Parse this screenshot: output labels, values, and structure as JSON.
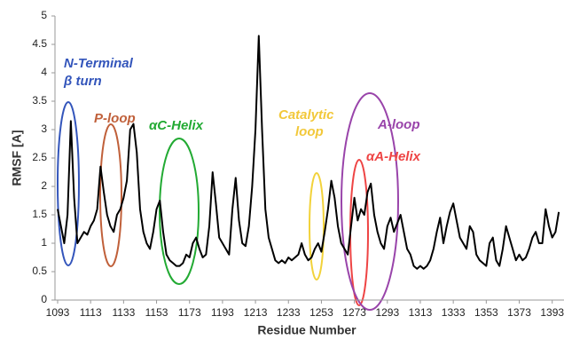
{
  "chart_data": {
    "type": "line",
    "xlabel": "Residue Number",
    "ylabel": "RMSF [A]",
    "color": "#000000",
    "x": [
      1093,
      1095,
      1097,
      1099,
      1101,
      1103,
      1105,
      1107,
      1109,
      1111,
      1113,
      1115,
      1117,
      1119,
      1121,
      1123,
      1125,
      1127,
      1129,
      1131,
      1133,
      1135,
      1137,
      1139,
      1141,
      1143,
      1145,
      1147,
      1149,
      1151,
      1153,
      1155,
      1157,
      1159,
      1161,
      1163,
      1165,
      1167,
      1169,
      1171,
      1173,
      1175,
      1177,
      1179,
      1181,
      1183,
      1185,
      1187,
      1189,
      1191,
      1193,
      1195,
      1197,
      1199,
      1201,
      1203,
      1205,
      1207,
      1209,
      1211,
      1213,
      1215,
      1217,
      1219,
      1221,
      1223,
      1225,
      1227,
      1229,
      1231,
      1233,
      1235,
      1237,
      1239,
      1241,
      1243,
      1245,
      1247,
      1249,
      1251,
      1253,
      1255,
      1257,
      1259,
      1261,
      1263,
      1265,
      1267,
      1269,
      1271,
      1273,
      1275,
      1277,
      1279,
      1281,
      1283,
      1285,
      1287,
      1289,
      1291,
      1293,
      1295,
      1297,
      1299,
      1301,
      1303,
      1305,
      1307,
      1309,
      1311,
      1313,
      1315,
      1317,
      1319,
      1321,
      1323,
      1325,
      1327,
      1329,
      1331,
      1333,
      1335,
      1337,
      1339,
      1341,
      1343,
      1345,
      1347,
      1349,
      1351,
      1353,
      1355,
      1357,
      1359,
      1361,
      1363,
      1365,
      1367,
      1369,
      1371,
      1373,
      1375,
      1377,
      1379,
      1381,
      1383,
      1385,
      1387,
      1389,
      1391,
      1393,
      1395,
      1397
    ],
    "values": [
      1.6,
      1.3,
      1.0,
      1.5,
      3.15,
      1.8,
      1.0,
      1.1,
      1.2,
      1.15,
      1.3,
      1.4,
      1.6,
      2.35,
      1.9,
      1.5,
      1.3,
      1.2,
      1.5,
      1.6,
      1.8,
      2.1,
      3.0,
      3.1,
      2.6,
      1.6,
      1.2,
      1.0,
      0.9,
      1.2,
      1.6,
      1.75,
      1.2,
      0.8,
      0.7,
      0.65,
      0.6,
      0.6,
      0.65,
      0.8,
      0.75,
      1.0,
      1.1,
      0.9,
      0.75,
      0.8,
      1.3,
      2.25,
      1.7,
      1.1,
      1.0,
      0.9,
      0.8,
      1.6,
      2.15,
      1.4,
      1.0,
      0.95,
      1.3,
      2.0,
      3.0,
      4.65,
      3.0,
      1.6,
      1.1,
      0.9,
      0.7,
      0.65,
      0.7,
      0.65,
      0.75,
      0.7,
      0.75,
      0.8,
      1.0,
      0.8,
      0.7,
      0.75,
      0.9,
      1.0,
      0.85,
      1.2,
      1.6,
      2.1,
      1.8,
      1.3,
      1.0,
      0.9,
      0.8,
      1.3,
      1.8,
      1.4,
      1.6,
      1.5,
      1.9,
      2.05,
      1.5,
      1.2,
      1.0,
      0.9,
      1.3,
      1.45,
      1.2,
      1.35,
      1.5,
      1.2,
      0.9,
      0.8,
      0.6,
      0.55,
      0.6,
      0.55,
      0.6,
      0.7,
      0.9,
      1.2,
      1.45,
      1.0,
      1.3,
      1.55,
      1.7,
      1.4,
      1.1,
      1.0,
      0.9,
      1.3,
      1.2,
      0.8,
      0.7,
      0.65,
      0.6,
      1.0,
      1.1,
      0.7,
      0.6,
      0.9,
      1.3,
      1.1,
      0.9,
      0.7,
      0.8,
      0.7,
      0.75,
      0.9,
      1.1,
      1.2,
      1.0,
      1.0,
      1.6,
      1.3,
      1.1,
      1.2,
      1.55
    ],
    "xlim": [
      1093,
      1398
    ],
    "ylim": [
      0,
      5
    ],
    "xticks": [
      1093,
      1113,
      1133,
      1153,
      1173,
      1193,
      1213,
      1233,
      1253,
      1273,
      1293,
      1313,
      1333,
      1353,
      1373,
      1393
    ],
    "yticks": [
      0,
      0.5,
      1,
      1.5,
      2,
      2.5,
      3,
      3.5,
      4,
      4.5,
      5
    ],
    "annotations": [
      "N-Terminal",
      "β turn",
      "P-loop",
      "αC-Helix",
      "Catalytic",
      "loop",
      "A-loop",
      "αA-Helix"
    ]
  }
}
